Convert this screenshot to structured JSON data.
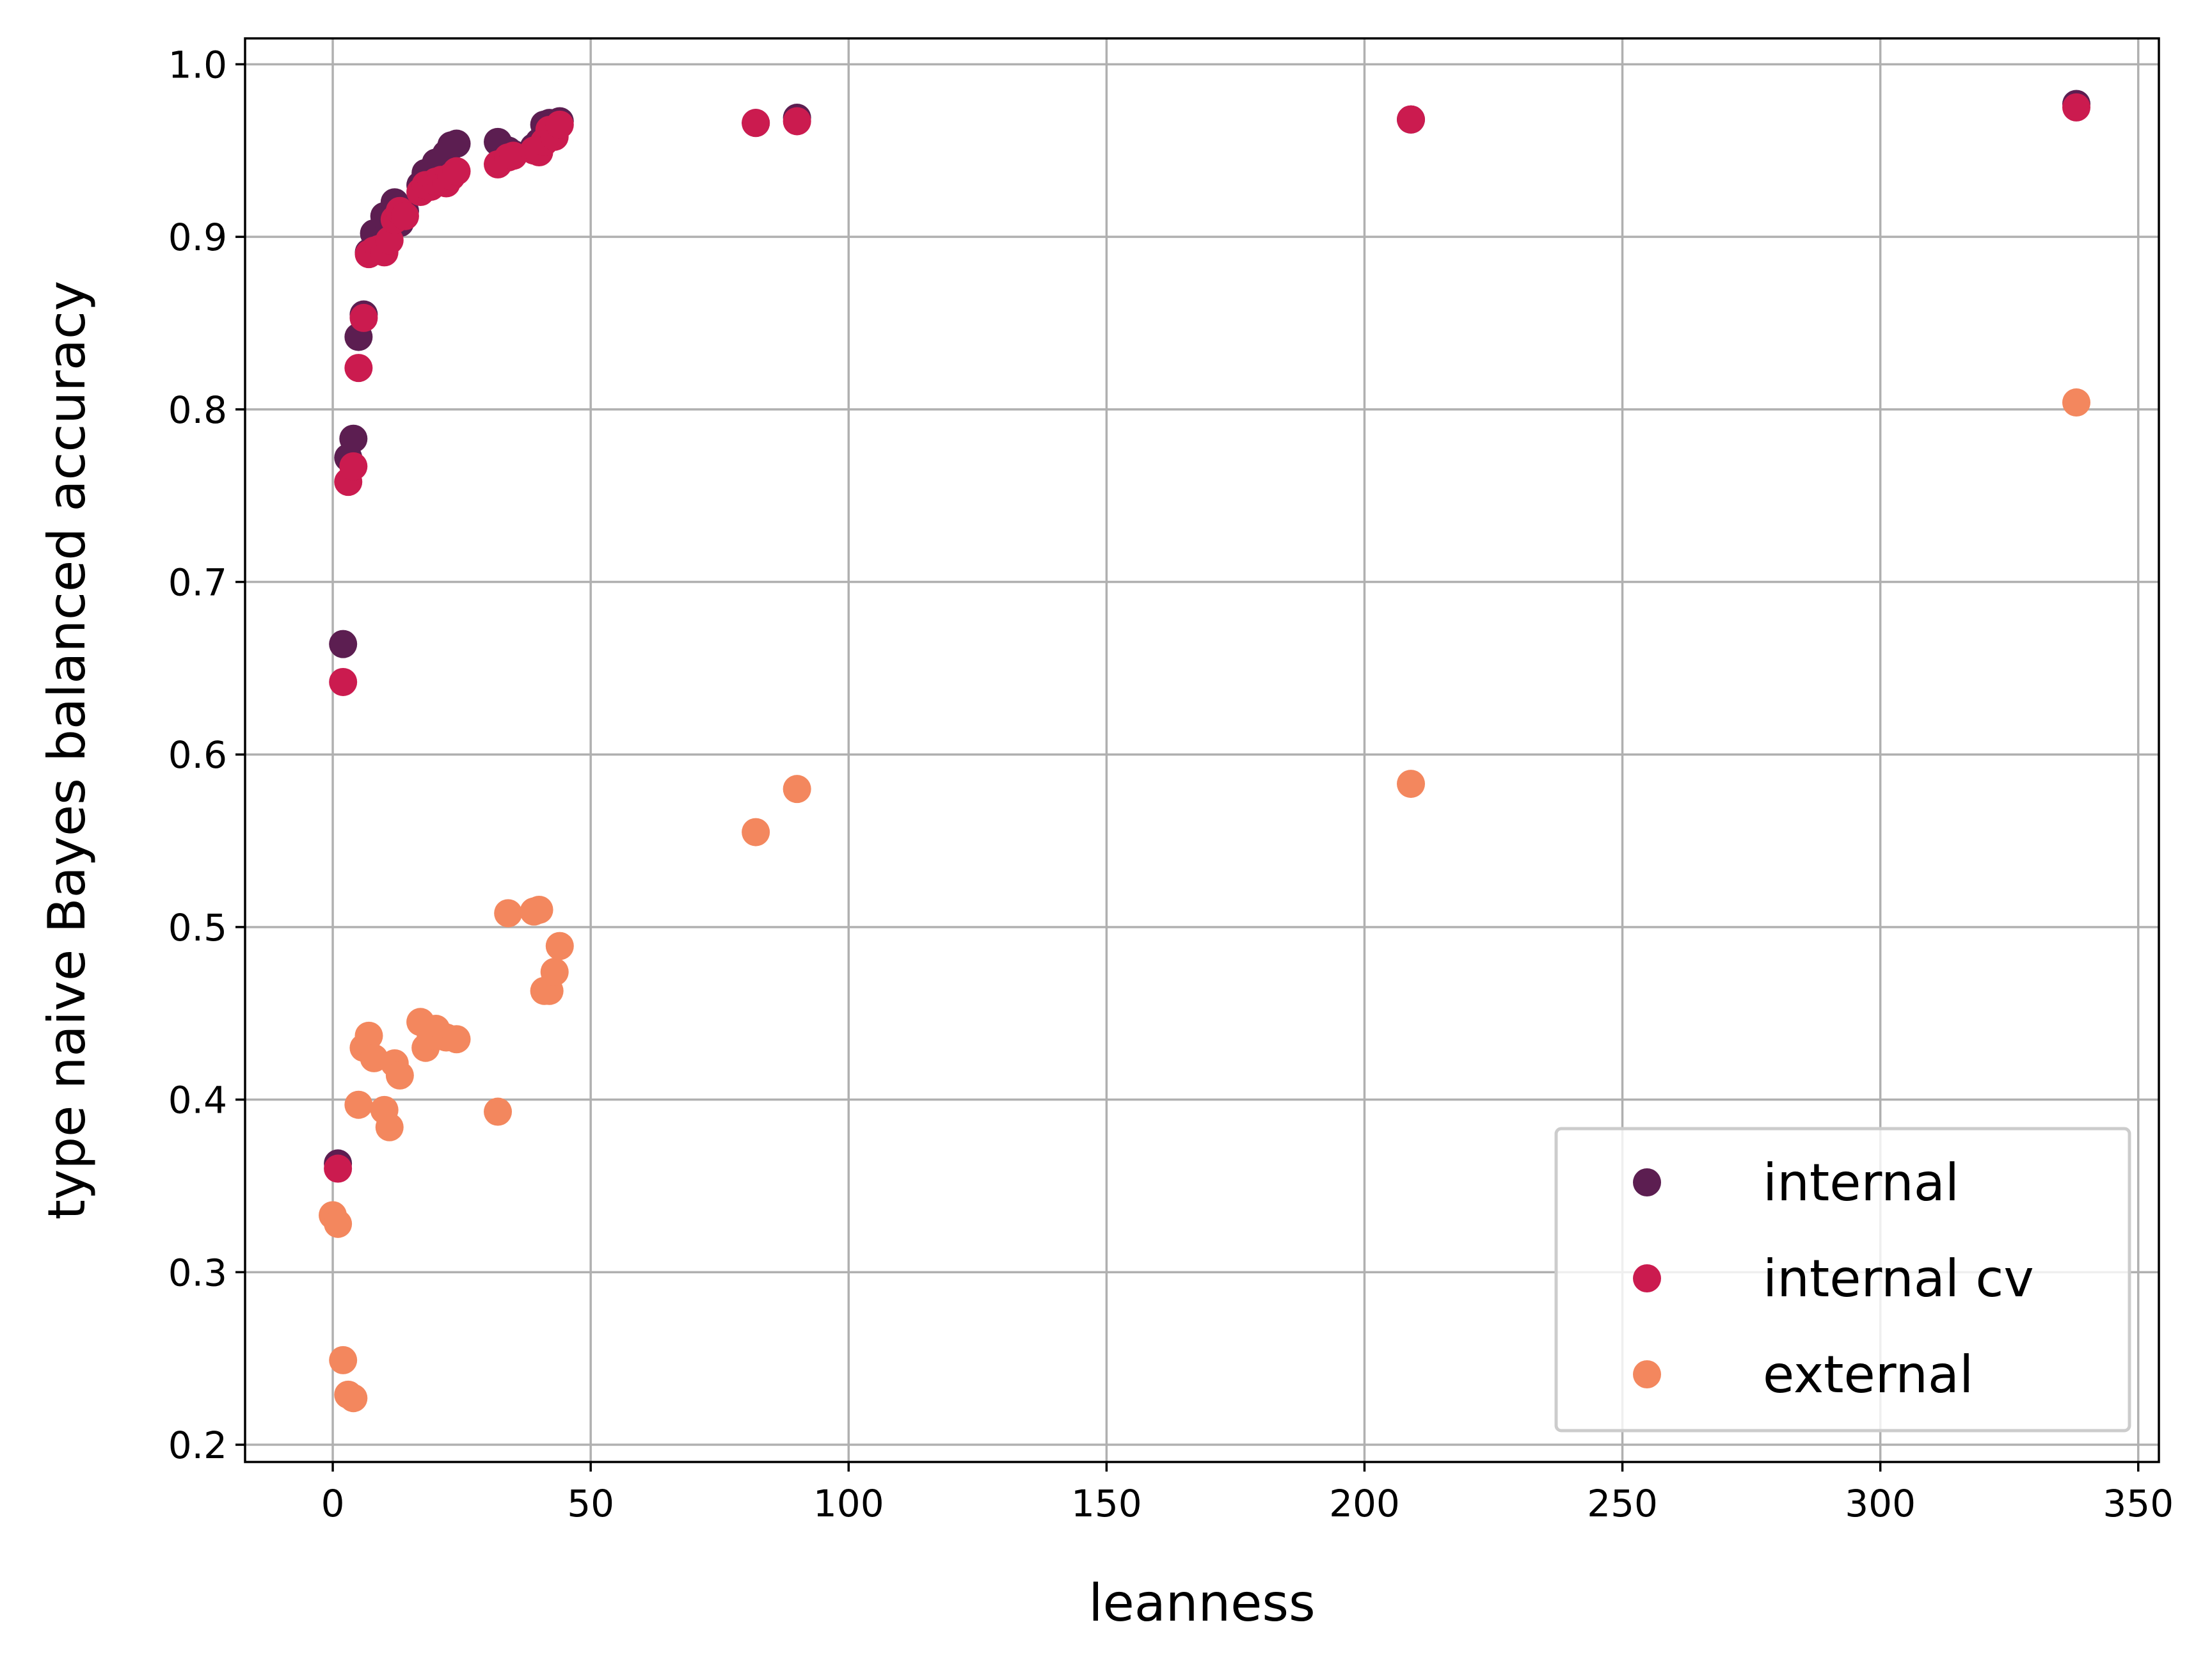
{
  "chart_data": {
    "type": "scatter",
    "xlabel": "leanness",
    "ylabel": "type naive Bayes balanced accuracy",
    "xlim": [
      -17,
      354
    ],
    "ylim": [
      0.19,
      1.015
    ],
    "xticks": [
      0,
      50,
      100,
      150,
      200,
      250,
      300,
      350
    ],
    "yticks": [
      0.2,
      0.3,
      0.4,
      0.5,
      0.6,
      0.7,
      0.8,
      0.9,
      1.0
    ],
    "xtick_labels": [
      "0",
      "50",
      "100",
      "150",
      "200",
      "250",
      "300",
      "350"
    ],
    "ytick_labels": [
      "0.2",
      "0.3",
      "0.4",
      "0.5",
      "0.6",
      "0.7",
      "0.8",
      "0.9",
      "1.0"
    ],
    "grid": true,
    "legend_position": "lower-right",
    "series": [
      {
        "name": "internal",
        "color": "#5c1e51",
        "points": [
          [
            1,
            0.363
          ],
          [
            2,
            0.664
          ],
          [
            3,
            0.772
          ],
          [
            4,
            0.783
          ],
          [
            5,
            0.842
          ],
          [
            6,
            0.855
          ],
          [
            7,
            0.891
          ],
          [
            8,
            0.902
          ],
          [
            9,
            0.895
          ],
          [
            10,
            0.912
          ],
          [
            11,
            0.905
          ],
          [
            12,
            0.92
          ],
          [
            13,
            0.908
          ],
          [
            14,
            0.915
          ],
          [
            17,
            0.93
          ],
          [
            18,
            0.937
          ],
          [
            19,
            0.938
          ],
          [
            20,
            0.943
          ],
          [
            21,
            0.94
          ],
          [
            22,
            0.948
          ],
          [
            23,
            0.953
          ],
          [
            24,
            0.954
          ],
          [
            32,
            0.955
          ],
          [
            34,
            0.95
          ],
          [
            35,
            0.948
          ],
          [
            39,
            0.952
          ],
          [
            40,
            0.955
          ],
          [
            41,
            0.965
          ],
          [
            42,
            0.966
          ],
          [
            43,
            0.96
          ],
          [
            44,
            0.967
          ],
          [
            82,
            0.966
          ],
          [
            90,
            0.969
          ],
          [
            209,
            0.968
          ],
          [
            338,
            0.977
          ]
        ]
      },
      {
        "name": "internal cv",
        "color": "#cb1b4f",
        "points": [
          [
            1,
            0.36
          ],
          [
            2,
            0.642
          ],
          [
            3,
            0.758
          ],
          [
            4,
            0.767
          ],
          [
            5,
            0.824
          ],
          [
            6,
            0.853
          ],
          [
            7,
            0.89
          ],
          [
            8,
            0.892
          ],
          [
            9,
            0.893
          ],
          [
            10,
            0.891
          ],
          [
            11,
            0.898
          ],
          [
            12,
            0.91
          ],
          [
            13,
            0.915
          ],
          [
            14,
            0.912
          ],
          [
            17,
            0.926
          ],
          [
            18,
            0.93
          ],
          [
            19,
            0.929
          ],
          [
            20,
            0.932
          ],
          [
            21,
            0.933
          ],
          [
            22,
            0.931
          ],
          [
            23,
            0.935
          ],
          [
            24,
            0.938
          ],
          [
            32,
            0.942
          ],
          [
            34,
            0.946
          ],
          [
            35,
            0.947
          ],
          [
            39,
            0.95
          ],
          [
            40,
            0.949
          ],
          [
            41,
            0.955
          ],
          [
            42,
            0.962
          ],
          [
            43,
            0.958
          ],
          [
            44,
            0.965
          ],
          [
            82,
            0.966
          ],
          [
            90,
            0.967
          ],
          [
            209,
            0.968
          ],
          [
            338,
            0.975
          ]
        ]
      },
      {
        "name": "external",
        "color": "#f3875e",
        "points": [
          [
            0,
            0.333
          ],
          [
            1,
            0.328
          ],
          [
            2,
            0.249
          ],
          [
            3,
            0.229
          ],
          [
            4,
            0.227
          ],
          [
            5,
            0.397
          ],
          [
            6,
            0.43
          ],
          [
            7,
            0.437
          ],
          [
            8,
            0.424
          ],
          [
            10,
            0.394
          ],
          [
            11,
            0.384
          ],
          [
            12,
            0.421
          ],
          [
            13,
            0.414
          ],
          [
            17,
            0.445
          ],
          [
            18,
            0.43
          ],
          [
            19,
            0.437
          ],
          [
            20,
            0.441
          ],
          [
            22,
            0.436
          ],
          [
            24,
            0.435
          ],
          [
            32,
            0.393
          ],
          [
            34,
            0.508
          ],
          [
            39,
            0.509
          ],
          [
            40,
            0.51
          ],
          [
            41,
            0.463
          ],
          [
            42,
            0.463
          ],
          [
            43,
            0.474
          ],
          [
            44,
            0.489
          ],
          [
            82,
            0.555
          ],
          [
            90,
            0.58
          ],
          [
            209,
            0.583
          ],
          [
            338,
            0.804
          ]
        ]
      }
    ]
  }
}
